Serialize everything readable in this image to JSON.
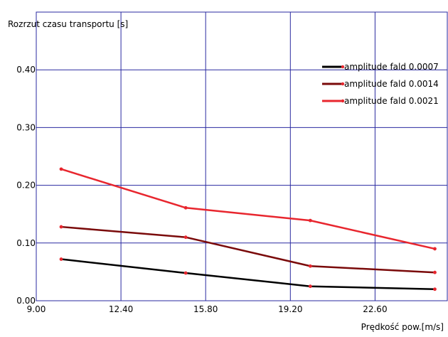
{
  "chart_data": {
    "type": "line",
    "ylabel": "Rozrzut czasu transportu [s]",
    "xlabel": "Prędkość pow.[m/s]",
    "xlim": [
      9.0,
      25.5
    ],
    "ylim": [
      0.0,
      0.5
    ],
    "x_ticks": [
      "9.00",
      "12.40",
      "15.80",
      "19.20",
      "22.60"
    ],
    "y_ticks": [
      "0.00",
      "0.10",
      "0.20",
      "0.30",
      "0.40"
    ],
    "x_tick_values": [
      9.0,
      12.4,
      15.8,
      19.2,
      22.6
    ],
    "y_tick_values": [
      0.0,
      0.1,
      0.2,
      0.3,
      0.4
    ],
    "grid": true,
    "legend_position": "top-right",
    "colors": {
      "grid": "#2a2aa0",
      "plot_border": "#2a2aa0",
      "marker": "#e8262e"
    },
    "series": [
      {
        "name": "amplitude fald 0.0007",
        "color": "#000000",
        "x": [
          10.0,
          15.0,
          20.0,
          25.0
        ],
        "y": [
          0.072,
          0.048,
          0.025,
          0.02
        ]
      },
      {
        "name": "amplitude fald 0.0014",
        "color": "#7a0a0a",
        "x": [
          10.0,
          15.0,
          20.0,
          25.0
        ],
        "y": [
          0.128,
          0.11,
          0.06,
          0.049
        ]
      },
      {
        "name": "amplitude fald 0.0021",
        "color": "#e8262e",
        "x": [
          10.0,
          15.0,
          20.0,
          25.0
        ],
        "y": [
          0.228,
          0.161,
          0.139,
          0.09
        ]
      }
    ]
  }
}
